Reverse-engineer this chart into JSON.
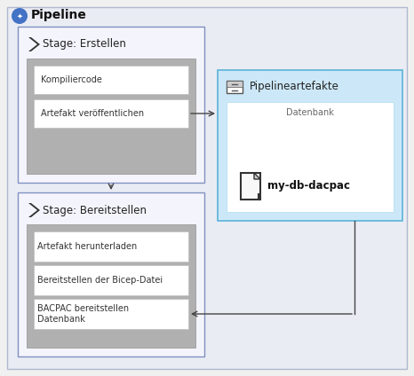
{
  "title": "Pipeline",
  "bg_outer": "#e8eaf0",
  "stage1_title": "Stage: Erstellen",
  "stage2_title": "Stage: Bereitstellen",
  "artifact_title": "Pipelineartefakte",
  "artifact_subtitle": "Datenbank",
  "artifact_file": "my-db-dacpac",
  "stage1_tasks": [
    "Kompiliercode",
    "Artefakt veröffentlichen"
  ],
  "stage2_tasks": [
    "Artefakt herunterladen",
    "Bereitstellen der Bicep-Datei",
    "BACPAC bereitstellen\nDatenbank"
  ],
  "outer_bg": "#eaecf4",
  "outer_border": "#b0b8d0",
  "stage_bg": "#f4f4fc",
  "stage_border": "#8090c0",
  "inner_gray_bg": "#b0b0b0",
  "inner_gray_border": "#909090",
  "task_bg": "#ffffff",
  "task_border": "#c0c0c0",
  "artifact_bg": "#cce8f8",
  "artifact_border": "#5ab4d8",
  "artifact_inner_bg": "#ffffff",
  "artifact_inner_border": "#aaddee",
  "arrow_color": "#444444",
  "title_fontsize": 10,
  "stage_fontsize": 8.5,
  "task_fontsize": 7,
  "artifact_fontsize": 8.5
}
